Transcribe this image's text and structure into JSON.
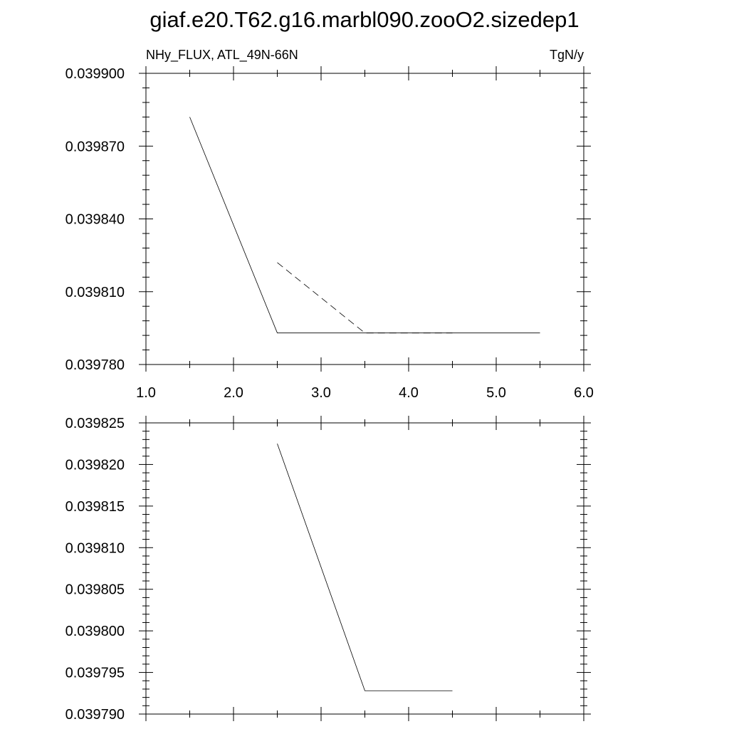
{
  "title": "giaf.e20.T62.g16.marbl090.zooO2.sizedep1",
  "chart_data": [
    {
      "type": "line",
      "left_label": "NHy_FLUX, ATL_49N-66N",
      "right_label": "TgN/y",
      "xlim": [
        1.0,
        6.0
      ],
      "ylim": [
        0.03978,
        0.0399
      ],
      "x_ticks": [
        "1.0",
        "2.0",
        "3.0",
        "4.0",
        "5.0",
        "6.0"
      ],
      "y_ticks": [
        "0.039780",
        "0.039810",
        "0.039840",
        "0.039870",
        "0.039900"
      ],
      "grid": false,
      "series": [
        {
          "style": "solid",
          "x": [
            1.5,
            2.5,
            3.5,
            4.5,
            5.5
          ],
          "y": [
            0.039882,
            0.039793,
            0.039793,
            0.039793,
            0.039793
          ]
        },
        {
          "style": "dashed",
          "x": [
            2.5,
            3.5,
            4.5
          ],
          "y": [
            0.039822,
            0.039793,
            0.039793
          ]
        }
      ]
    },
    {
      "type": "line",
      "xlim": [
        1.0,
        6.0
      ],
      "ylim": [
        0.03979,
        0.039825
      ],
      "y_ticks": [
        "0.039790",
        "0.039795",
        "0.039800",
        "0.039805",
        "0.039810",
        "0.039815",
        "0.039820",
        "0.039825"
      ],
      "grid": false,
      "series": [
        {
          "style": "solid",
          "x": [
            2.5,
            3.5,
            4.5
          ],
          "y": [
            0.0398225,
            0.0397928,
            0.0397928
          ]
        }
      ]
    }
  ]
}
